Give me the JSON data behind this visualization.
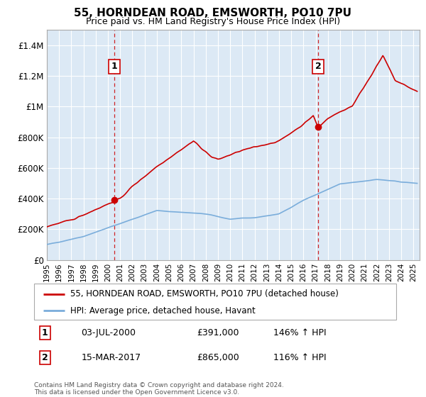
{
  "title": "55, HORNDEAN ROAD, EMSWORTH, PO10 7PU",
  "subtitle": "Price paid vs. HM Land Registry's House Price Index (HPI)",
  "background_color": "#ffffff",
  "plot_bg_color": "#dce9f5",
  "red_line_color": "#cc0000",
  "blue_line_color": "#7aaddb",
  "marker1_date_x": 2000.5,
  "marker2_date_x": 2017.2,
  "marker1_y": 391000,
  "marker2_y": 865000,
  "ylim": [
    0,
    1500000
  ],
  "yticks": [
    0,
    200000,
    400000,
    600000,
    800000,
    1000000,
    1200000,
    1400000
  ],
  "ytick_labels": [
    "£0",
    "£200K",
    "£400K",
    "£600K",
    "£800K",
    "£1M",
    "£1.2M",
    "£1.4M"
  ],
  "footer_line1": "Contains HM Land Registry data © Crown copyright and database right 2024.",
  "footer_line2": "This data is licensed under the Open Government Licence v3.0.",
  "legend_label1": "55, HORNDEAN ROAD, EMSWORTH, PO10 7PU (detached house)",
  "legend_label2": "HPI: Average price, detached house, Havant",
  "note1_date": "03-JUL-2000",
  "note1_price": "£391,000",
  "note1_hpi": "146% ↑ HPI",
  "note2_date": "15-MAR-2017",
  "note2_price": "£865,000",
  "note2_hpi": "116% ↑ HPI",
  "xlim_left": 1995,
  "xlim_right": 2025.5
}
